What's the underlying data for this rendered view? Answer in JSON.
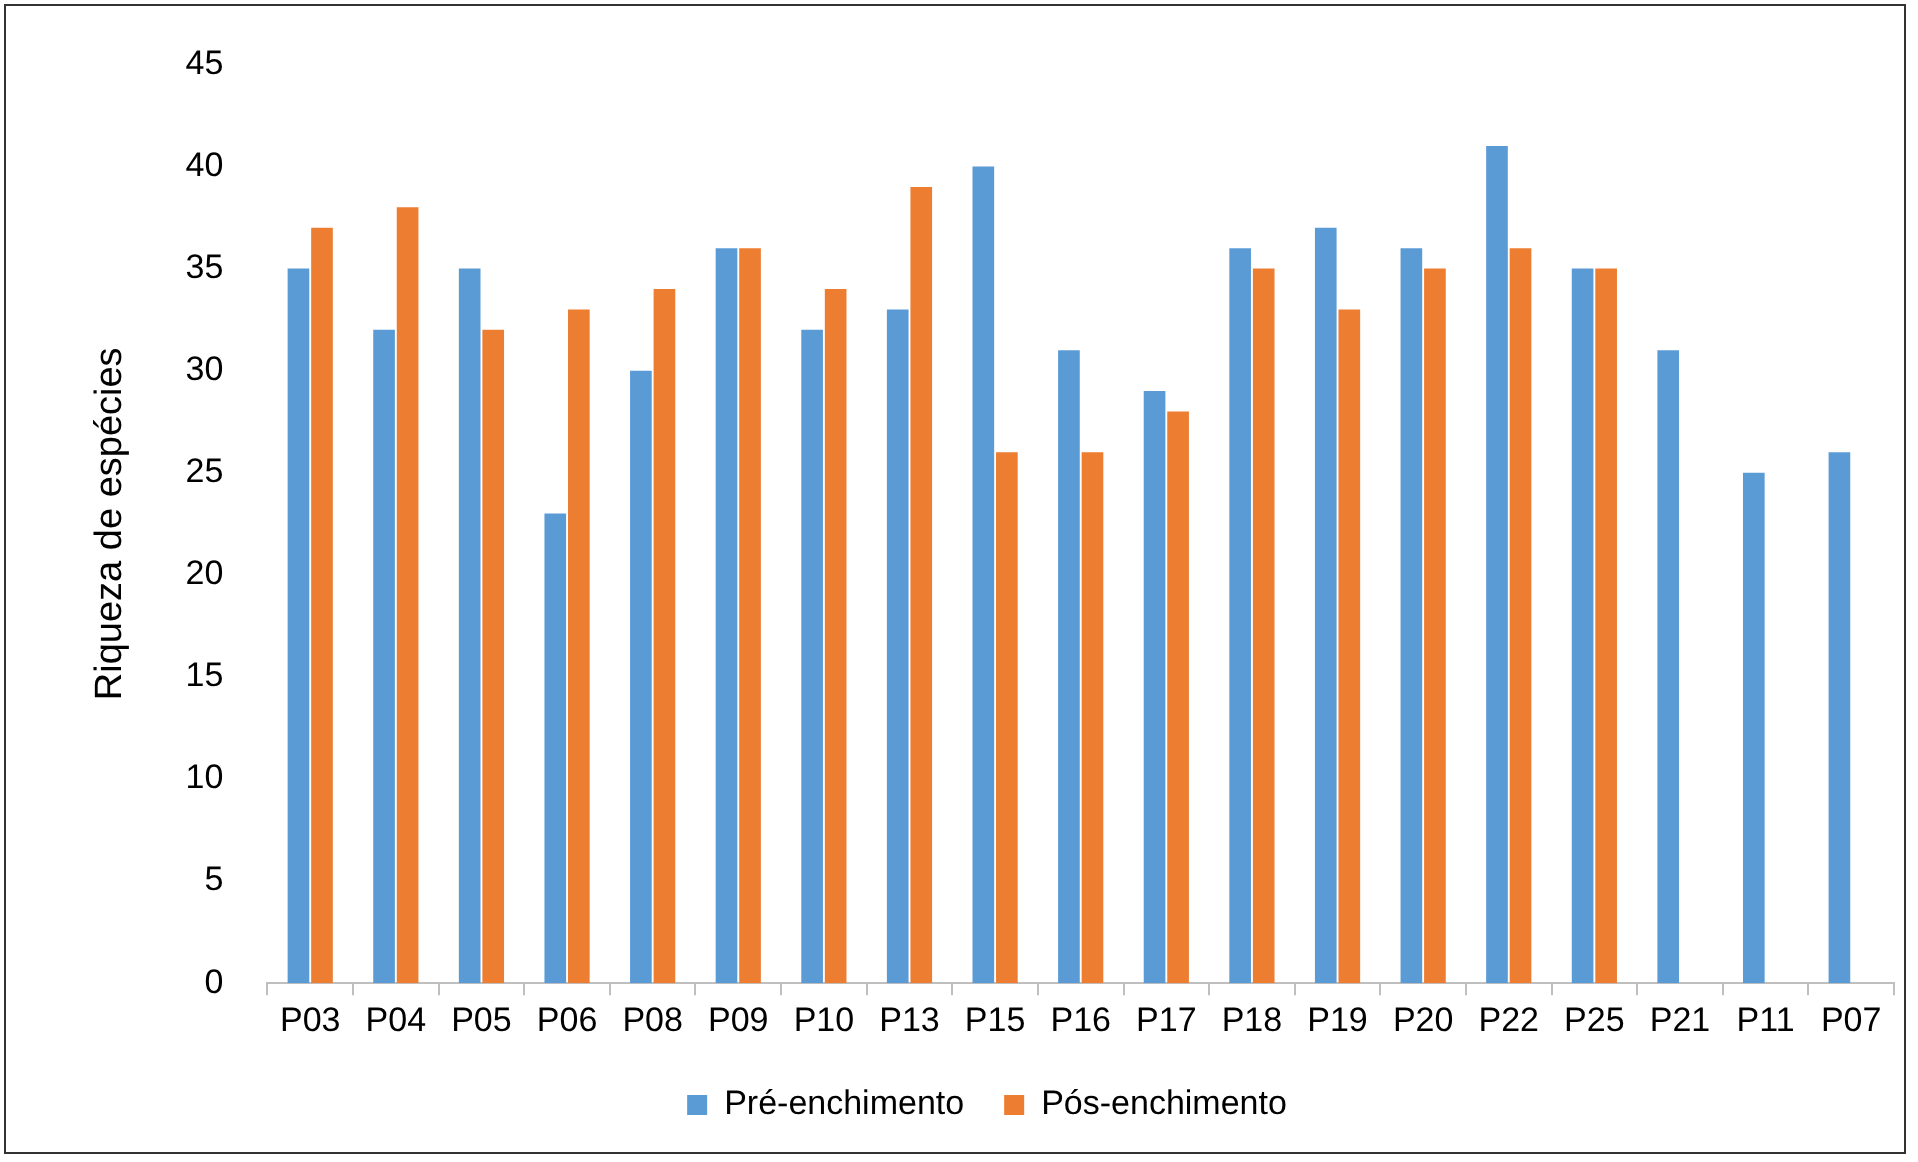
{
  "chart_data": {
    "type": "bar",
    "ylabel": "Riqueza de espécies",
    "categories": [
      "P03",
      "P04",
      "P05",
      "P06",
      "P08",
      "P09",
      "P10",
      "P13",
      "P15",
      "P16",
      "P17",
      "P18",
      "P19",
      "P20",
      "P22",
      "P25",
      "P21",
      "P11",
      "P07"
    ],
    "series": [
      {
        "name": "Pré-enchimento",
        "color": "#5b9bd5",
        "values": [
          35,
          32,
          35,
          23,
          30,
          36,
          32,
          33,
          40,
          31,
          29,
          36,
          37,
          36,
          41,
          35,
          31,
          25,
          26
        ]
      },
      {
        "name": "Pós-enchimento",
        "color": "#ed7d31",
        "values": [
          37,
          38,
          32,
          33,
          34,
          36,
          34,
          39,
          26,
          26,
          28,
          35,
          33,
          35,
          36,
          35,
          null,
          null,
          null
        ]
      }
    ],
    "ylim": [
      0,
      45
    ],
    "yticks": [
      0,
      5,
      10,
      15,
      20,
      25,
      30,
      35,
      40,
      45
    ],
    "grid": false,
    "legend": "bottom"
  }
}
